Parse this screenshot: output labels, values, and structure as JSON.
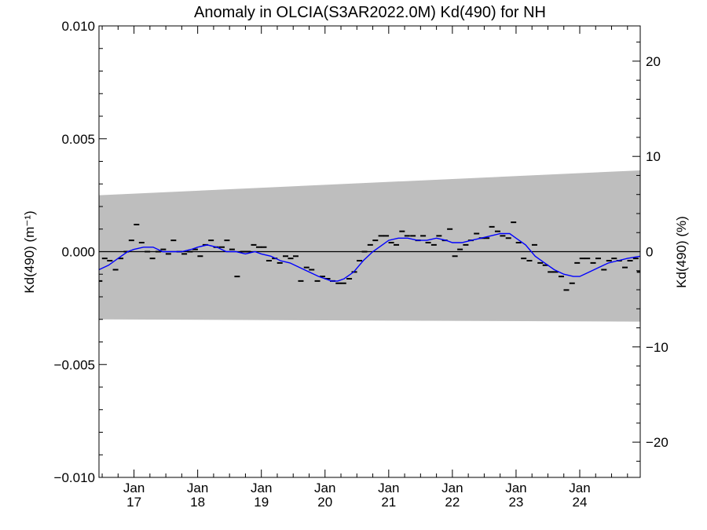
{
  "chart_data": {
    "type": "line",
    "title": "Anomaly in OLCIA(S3AR2022.0M) Kd(490) for NH",
    "ylabel_left": "Kd(490) (m⁻¹)",
    "ylabel_right": "Kd(490) (%)",
    "ylim_left": [
      -0.01,
      0.01
    ],
    "ylim_right": [
      -23.7,
      23.7
    ],
    "xlim": [
      2016.45,
      2024.95
    ],
    "left_ticks": [
      {
        "value": 0.01,
        "label": "0.010"
      },
      {
        "value": 0.005,
        "label": "0.005"
      },
      {
        "value": 0.0,
        "label": "0.000"
      },
      {
        "value": -0.005,
        "label": "−0.005"
      },
      {
        "value": -0.01,
        "label": "−0.010"
      }
    ],
    "right_ticks": [
      {
        "value": 20,
        "label": "20"
      },
      {
        "value": 10,
        "label": "10"
      },
      {
        "value": 0,
        "label": "0"
      },
      {
        "value": -10,
        "label": "−10"
      },
      {
        "value": -20,
        "label": "−20"
      }
    ],
    "x_ticks": [
      {
        "value": 2017,
        "month": "Jan",
        "year": "17"
      },
      {
        "value": 2018,
        "month": "Jan",
        "year": "18"
      },
      {
        "value": 2019,
        "month": "Jan",
        "year": "19"
      },
      {
        "value": 2020,
        "month": "Jan",
        "year": "20"
      },
      {
        "value": 2021,
        "month": "Jan",
        "year": "21"
      },
      {
        "value": 2022,
        "month": "Jan",
        "year": "22"
      },
      {
        "value": 2023,
        "month": "Jan",
        "year": "23"
      },
      {
        "value": 2024,
        "month": "Jan",
        "year": "24"
      }
    ],
    "uncertainty_band": {
      "x": [
        2016.45,
        2024.95
      ],
      "upper": [
        0.0025,
        0.0036
      ],
      "lower": [
        -0.003,
        -0.0031
      ],
      "color": "#bebebe"
    },
    "series": [
      {
        "kind": "monthly_markers",
        "color": "#000000",
        "x": [
          2016.46,
          2016.54,
          2016.62,
          2016.71,
          2016.79,
          2016.88,
          2016.96,
          2017.04,
          2017.12,
          2017.21,
          2017.29,
          2017.38,
          2017.46,
          2017.54,
          2017.62,
          2017.71,
          2017.79,
          2017.88,
          2017.96,
          2018.04,
          2018.12,
          2018.21,
          2018.29,
          2018.38,
          2018.46,
          2018.54,
          2018.62,
          2018.71,
          2018.79,
          2018.88,
          2018.96,
          2019.04,
          2019.12,
          2019.21,
          2019.29,
          2019.38,
          2019.46,
          2019.54,
          2019.62,
          2019.71,
          2019.79,
          2019.88,
          2019.96,
          2020.04,
          2020.12,
          2020.21,
          2020.29,
          2020.38,
          2020.46,
          2020.54,
          2020.62,
          2020.71,
          2020.79,
          2020.88,
          2020.96,
          2021.04,
          2021.12,
          2021.21,
          2021.29,
          2021.38,
          2021.46,
          2021.54,
          2021.62,
          2021.71,
          2021.79,
          2021.88,
          2021.96,
          2022.04,
          2022.12,
          2022.21,
          2022.29,
          2022.38,
          2022.46,
          2022.54,
          2022.62,
          2022.71,
          2022.79,
          2022.88,
          2022.96,
          2023.04,
          2023.12,
          2023.21,
          2023.29,
          2023.38,
          2023.46,
          2023.54,
          2023.62,
          2023.71,
          2023.79,
          2023.88,
          2023.96,
          2024.04,
          2024.12,
          2024.21,
          2024.29,
          2024.38,
          2024.46,
          2024.54,
          2024.62,
          2024.71,
          2024.79,
          2024.88,
          2024.94
        ],
        "values": [
          -0.0013,
          -0.0003,
          -0.0004,
          -0.0008,
          -0.0003,
          0.0,
          0.0005,
          0.0012,
          0.0004,
          0.0,
          -0.0003,
          0.0,
          0.0001,
          -0.0001,
          0.0005,
          0.0,
          -0.0001,
          0.0,
          0.0001,
          -0.0002,
          0.0003,
          0.0005,
          0.0002,
          0.0002,
          0.0005,
          0.0001,
          -0.0011,
          0.0,
          0.0,
          0.0003,
          0.0002,
          0.0002,
          -0.0004,
          -0.0003,
          -0.0005,
          -0.0002,
          -0.0003,
          -0.0002,
          -0.0013,
          -0.0007,
          -0.0008,
          -0.0013,
          -0.0011,
          -0.0012,
          -0.0013,
          -0.0014,
          -0.0014,
          -0.0012,
          -0.0009,
          -0.0004,
          0.0,
          0.0003,
          0.0005,
          0.0007,
          0.0007,
          0.0004,
          0.0003,
          0.0009,
          0.0007,
          0.0007,
          0.0005,
          0.0007,
          0.0004,
          0.0003,
          0.0007,
          0.0005,
          0.001,
          -0.0002,
          0.0001,
          0.0003,
          0.0005,
          0.0008,
          0.0006,
          0.0006,
          0.0011,
          0.0009,
          0.0007,
          0.0006,
          0.0013,
          0.0004,
          -0.0003,
          -0.0004,
          0.0003,
          -0.0005,
          -0.0006,
          -0.0009,
          -0.0009,
          -0.0011,
          -0.0017,
          -0.0014,
          -0.0005,
          -0.0003,
          -0.0003,
          -0.0005,
          -0.0003,
          -0.0008,
          -0.0004,
          -0.0003,
          -0.0004,
          -0.0007,
          -0.0004,
          -0.0003,
          -0.0009
        ]
      },
      {
        "kind": "smoothed_line",
        "color": "#0000ff",
        "x": [
          2016.45,
          2016.6,
          2016.75,
          2016.9,
          2017.0,
          2017.15,
          2017.3,
          2017.45,
          2017.6,
          2017.75,
          2017.9,
          2018.0,
          2018.15,
          2018.3,
          2018.45,
          2018.6,
          2018.75,
          2018.9,
          2019.0,
          2019.15,
          2019.3,
          2019.45,
          2019.6,
          2019.75,
          2019.9,
          2020.0,
          2020.1,
          2020.2,
          2020.3,
          2020.45,
          2020.6,
          2020.75,
          2020.9,
          2021.0,
          2021.15,
          2021.3,
          2021.45,
          2021.6,
          2021.75,
          2021.9,
          2022.0,
          2022.15,
          2022.3,
          2022.45,
          2022.6,
          2022.75,
          2022.9,
          2023.0,
          2023.15,
          2023.3,
          2023.45,
          2023.6,
          2023.75,
          2023.9,
          2024.0,
          2024.15,
          2024.3,
          2024.45,
          2024.6,
          2024.75,
          2024.95
        ],
        "values": [
          -0.0008,
          -0.0006,
          -0.0003,
          0.0,
          0.0001,
          0.0002,
          0.0002,
          0.0,
          0.0,
          0.0,
          0.0001,
          0.0002,
          0.0003,
          0.0002,
          0.0,
          0.0,
          -0.0001,
          0.0,
          -0.0001,
          -0.0002,
          -0.0004,
          -0.0005,
          -0.0007,
          -0.0009,
          -0.0011,
          -0.0012,
          -0.0013,
          -0.0013,
          -0.0012,
          -0.0009,
          -0.0004,
          0.0,
          0.0003,
          0.0005,
          0.0006,
          0.0006,
          0.0005,
          0.0005,
          0.0006,
          0.0005,
          0.0004,
          0.0004,
          0.0005,
          0.0006,
          0.0007,
          0.0008,
          0.0008,
          0.0006,
          0.0003,
          -0.0002,
          -0.0005,
          -0.0008,
          -0.001,
          -0.0011,
          -0.0011,
          -0.0009,
          -0.0007,
          -0.0005,
          -0.0004,
          -0.0003,
          -0.0002
        ]
      }
    ],
    "zero_line": true,
    "grid": false,
    "legend": "none"
  }
}
